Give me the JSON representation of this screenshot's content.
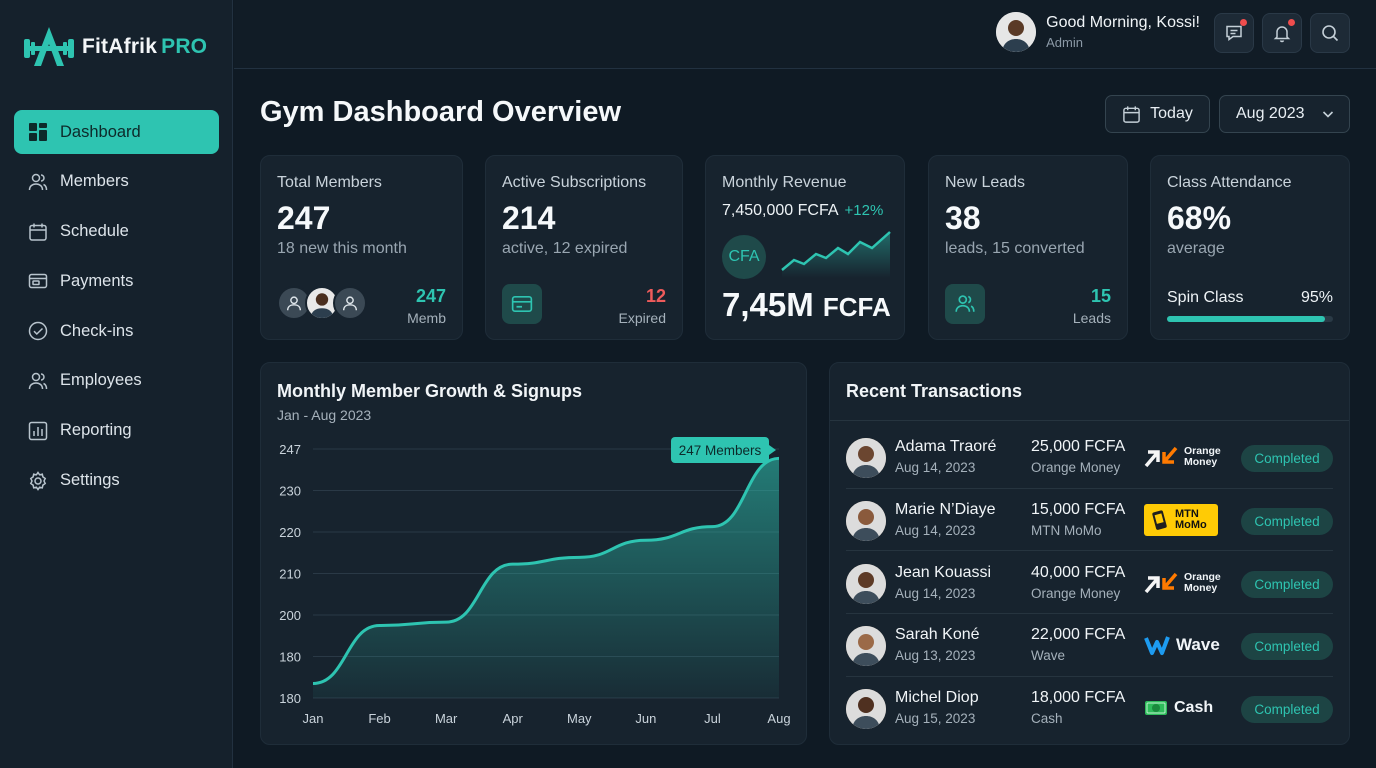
{
  "brand": {
    "name": "FitAfrik",
    "suffix": "PRO"
  },
  "nav": [
    {
      "label": "Dashboard",
      "icon": "dashboard-icon",
      "active": true
    },
    {
      "label": "Members",
      "icon": "members-icon"
    },
    {
      "label": "Schedule",
      "icon": "calendar-icon"
    },
    {
      "label": "Payments",
      "icon": "payments-icon"
    },
    {
      "label": "Check-ins",
      "icon": "check-circle-icon"
    },
    {
      "label": "Employees",
      "icon": "employees-icon"
    },
    {
      "label": "Reporting",
      "icon": "bar-chart-icon"
    },
    {
      "label": "Settings",
      "icon": "gear-icon"
    }
  ],
  "topbar": {
    "greeting": "Good Morning, Kossi!",
    "role": "Admin"
  },
  "header": {
    "title": "Gym Dashboard Overview",
    "today_label": "Today",
    "month_label": "Aug 2023"
  },
  "stats": {
    "members": {
      "label": "Total Members",
      "value": "247",
      "sub": "18 new this month",
      "right_value": "247",
      "right_label": "Memb"
    },
    "subscriptions": {
      "label": "Active Subscriptions",
      "value": "214",
      "sub": "active, 12 expired",
      "right_value": "12",
      "right_label": "Expired"
    },
    "revenue": {
      "label": "Monthly Revenue",
      "amount": "7,450,000 FCFA",
      "change": "+12%",
      "badge": "CFA",
      "big_value": "7,45M",
      "big_unit": "FCFA"
    },
    "leads": {
      "label": "New Leads",
      "value": "38",
      "sub": "leads, 15 converted",
      "right_value": "15",
      "right_label": "Leads"
    },
    "attendance": {
      "label": "Class Attendance",
      "value": "68%",
      "sub": "average",
      "class_name": "Spin Class",
      "class_pct": "95%",
      "class_fill": 0.95
    }
  },
  "colors": {
    "accent": "#2ec4b1",
    "danger": "#ef5b5b",
    "bg": "#0f1a24",
    "card": "#17232e"
  },
  "chart_data": {
    "type": "area",
    "title": "Monthly Member Growth & Signups",
    "subtitle": "Jan - Aug 2023",
    "categories": [
      "Jan",
      "Feb",
      "Mar",
      "Apr",
      "May",
      "Jun",
      "Jul",
      "Aug"
    ],
    "values": [
      181,
      198,
      199,
      216,
      218,
      223,
      227,
      247
    ],
    "ytick_labels": [
      "180",
      "180",
      "200",
      "210",
      "220",
      "230",
      "247"
    ],
    "ylim": [
      175,
      248
    ],
    "annotation": "247 Members",
    "grid": true
  },
  "transactions": {
    "title": "Recent Transactions",
    "rows": [
      {
        "name": "Adama Traoré",
        "date": "Aug 14, 2023",
        "amount": "25,000 FCFA",
        "method": "Orange Money",
        "logo_text": "Orange Money",
        "logo": "orange",
        "status": "Completed"
      },
      {
        "name": "Marie N’Diaye",
        "date": "Aug 14, 2023",
        "amount": "15,000 FCFA",
        "method": "MTN MoMo",
        "logo_text": "MTN MoMo",
        "logo": "mtn",
        "status": "Completed"
      },
      {
        "name": "Jean Kouassi",
        "date": "Aug 14, 2023",
        "amount": "40,000 FCFA",
        "method": "Orange Money",
        "logo_text": "Orange Money",
        "logo": "orange",
        "status": "Completed"
      },
      {
        "name": "Sarah Koné",
        "date": "Aug 13, 2023",
        "amount": "22,000 FCFA",
        "method": "Wave",
        "logo_text": "Wave",
        "logo": "wave",
        "status": "Completed"
      },
      {
        "name": "Michel Diop",
        "date": "Aug 15, 2023",
        "amount": "18,000 FCFA",
        "method": "Cash",
        "logo_text": "Cash",
        "logo": "cash",
        "status": "Completed"
      }
    ]
  }
}
